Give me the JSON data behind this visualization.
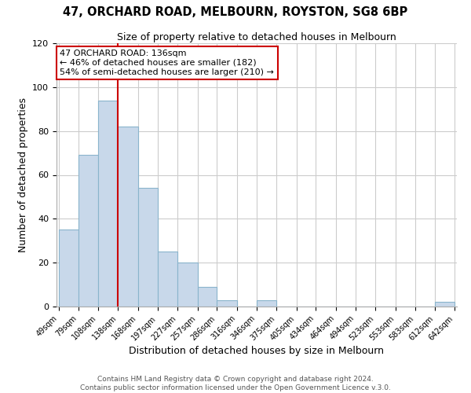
{
  "title": "47, ORCHARD ROAD, MELBOURN, ROYSTON, SG8 6BP",
  "subtitle": "Size of property relative to detached houses in Melbourn",
  "xlabel": "Distribution of detached houses by size in Melbourn",
  "ylabel": "Number of detached properties",
  "bar_color": "#c8d8ea",
  "bar_edge_color": "#8ab4cc",
  "vline_x": 138,
  "vline_color": "#cc0000",
  "annotation_title": "47 ORCHARD ROAD: 136sqm",
  "annotation_line1": "← 46% of detached houses are smaller (182)",
  "annotation_line2": "54% of semi-detached houses are larger (210) →",
  "annotation_box_color": "#ffffff",
  "annotation_box_edge": "#cc0000",
  "bin_edges": [
    49,
    79,
    108,
    138,
    168,
    197,
    227,
    257,
    286,
    316,
    346,
    375,
    405,
    434,
    464,
    494,
    523,
    553,
    583,
    612,
    642
  ],
  "bar_heights": [
    35,
    69,
    94,
    82,
    54,
    25,
    20,
    9,
    3,
    0,
    3,
    0,
    0,
    0,
    0,
    0,
    0,
    0,
    0,
    2
  ],
  "ylim": [
    0,
    120
  ],
  "yticks": [
    0,
    20,
    40,
    60,
    80,
    100,
    120
  ],
  "footer1": "Contains HM Land Registry data © Crown copyright and database right 2024.",
  "footer2": "Contains public sector information licensed under the Open Government Licence v.3.0.",
  "background_color": "#ffffff",
  "grid_color": "#cccccc"
}
